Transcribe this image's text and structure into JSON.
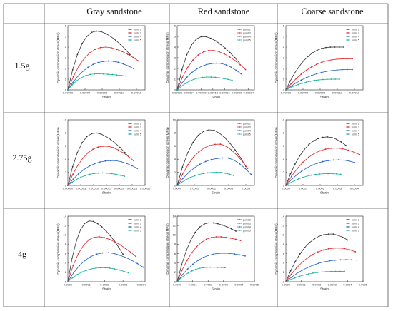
{
  "table": {
    "columns": [
      "Gray sandstone",
      "Red sandstone",
      "Coarse sandstone"
    ],
    "rows": [
      "1.5g",
      "2.75g",
      "4g"
    ]
  },
  "colors": {
    "point 2": "#333333",
    "point 3": "#e8252a",
    "point 4": "#1f5fd0",
    "point 5": "#16b28f"
  },
  "chart_data": [
    {
      "type": "line",
      "row": "1.5g",
      "column": "Gray sandstone",
      "xlabel": "Strain",
      "ylabel": "Dynamic compression stress(MPa)",
      "xlim": [
        0,
        0.00018
      ],
      "ylim": [
        0,
        6
      ],
      "xticks": [
        0,
        4e-05,
        8e-05,
        0.00012,
        0.00016
      ],
      "xticklabels": [
        "0.00000",
        "0.00004",
        "0.00008",
        "0.00012",
        "0.00016"
      ],
      "yticks": [
        0,
        1,
        2,
        3,
        4,
        5,
        6
      ],
      "series": [
        {
          "name": "point 2",
          "peak": [
            7e-05,
            5.5
          ],
          "end": [
            0.000145,
            3.3
          ]
        },
        {
          "name": "point 3",
          "peak": [
            9e-05,
            4.0
          ],
          "end": [
            0.000165,
            2.7
          ]
        },
        {
          "name": "point 4",
          "peak": [
            0.0001,
            2.7
          ],
          "end": [
            0.000153,
            2.0
          ]
        },
        {
          "name": "point 5",
          "peak": [
            7e-05,
            1.5
          ],
          "end": [
            0.000135,
            1.3
          ]
        }
      ]
    },
    {
      "type": "line",
      "row": "1.5g",
      "column": "Red sandstone",
      "xlabel": "Strain",
      "ylabel": "Dynamic compression stress(MPa)",
      "xlim": [
        0,
        0.00026
      ],
      "ylim": [
        0,
        6
      ],
      "xticks": [
        0,
        4e-05,
        8e-05,
        0.00012,
        0.00016,
        0.0002,
        0.00024
      ],
      "xticklabels": [
        "0.00000",
        "0.00004",
        "0.00008",
        "0.00012",
        "0.00016",
        "0.00020",
        "0.00024"
      ],
      "yticks": [
        0,
        1,
        2,
        3,
        4,
        5,
        6
      ],
      "series": [
        {
          "name": "point 2",
          "peak": [
            9e-05,
            5.0
          ],
          "end": [
            0.00021,
            2.5
          ]
        },
        {
          "name": "point 3",
          "peak": [
            0.00012,
            3.7
          ],
          "end": [
            0.00023,
            1.9
          ]
        },
        {
          "name": "point 4",
          "peak": [
            0.00014,
            2.5
          ],
          "end": [
            0.000215,
            1.5
          ]
        },
        {
          "name": "point 5",
          "peak": [
            0.00011,
            1.2
          ],
          "end": [
            0.000185,
            0.9
          ]
        }
      ]
    },
    {
      "type": "line",
      "row": "1.5g",
      "column": "Coarse sandstone",
      "xlabel": "Strain",
      "ylabel": "Dynamic compression stress(MPa)",
      "xlim": [
        0,
        0.00018
      ],
      "ylim": [
        0,
        6
      ],
      "xticks": [
        0,
        4e-05,
        8e-05,
        0.00012,
        0.00016
      ],
      "xticklabels": [
        "0.00000",
        "0.00004",
        "0.00008",
        "0.00012",
        "0.00016"
      ],
      "yticks": [
        0,
        1,
        2,
        3,
        4,
        5,
        6
      ],
      "series": [
        {
          "name": "point 2",
          "peak": [
            0.00011,
            4.0
          ],
          "end": [
            0.000135,
            4.0
          ]
        },
        {
          "name": "point 3",
          "peak": [
            0.00014,
            2.9
          ],
          "end": [
            0.000155,
            2.9
          ]
        },
        {
          "name": "point 4",
          "peak": [
            0.00015,
            1.9
          ],
          "end": [
            0.000155,
            1.9
          ]
        },
        {
          "name": "point 5",
          "peak": [
            0.000115,
            1.0
          ],
          "end": [
            0.000125,
            1.0
          ]
        }
      ]
    },
    {
      "type": "line",
      "row": "2.75g",
      "column": "Gray sandstone",
      "xlabel": "Strain",
      "ylabel": "Dynamic compression stress(MPa)",
      "xlim": [
        0,
        0.0003
      ],
      "ylim": [
        0,
        10
      ],
      "xticks": [
        0,
        5e-05,
        0.0001,
        0.00015,
        0.0002,
        0.00025,
        0.0003
      ],
      "xticklabels": [
        "0.00000",
        "0.00005",
        "0.00010",
        "0.00015",
        "0.00020",
        "0.00025",
        "0.00030"
      ],
      "yticks": [
        0,
        2,
        4,
        6,
        8,
        10
      ],
      "series": [
        {
          "name": "point 2",
          "peak": [
            0.00011,
            8.0
          ],
          "end": [
            0.00024,
            4.2
          ]
        },
        {
          "name": "point 3",
          "peak": [
            0.00015,
            6.0
          ],
          "end": [
            0.000255,
            3.8
          ]
        },
        {
          "name": "point 4",
          "peak": [
            0.00018,
            3.8
          ],
          "end": [
            0.00027,
            2.6
          ]
        },
        {
          "name": "point 5",
          "peak": [
            0.00014,
            1.9
          ],
          "end": [
            0.00022,
            1.4
          ]
        }
      ]
    },
    {
      "type": "line",
      "row": "2.75g",
      "column": "Red sandstone",
      "xlabel": "Strain",
      "ylabel": "Dynamic compression stress(MPa)",
      "xlim": [
        0,
        0.00045
      ],
      "ylim": [
        0,
        10
      ],
      "xticks": [
        0,
        0.0001,
        0.0002,
        0.0003,
        0.0004
      ],
      "xticklabels": [
        "0.0000",
        "0.0001",
        "0.0002",
        "0.0003",
        "0.0004"
      ],
      "yticks": [
        0,
        2,
        4,
        6,
        8,
        10
      ],
      "series": [
        {
          "name": "point 2",
          "peak": [
            0.0002,
            8.5
          ],
          "end": [
            0.0004,
            2.9
          ]
        },
        {
          "name": "point 3",
          "peak": [
            0.00025,
            6.3
          ],
          "end": [
            0.00041,
            2.6
          ]
        },
        {
          "name": "point 4",
          "peak": [
            0.00029,
            4.2
          ],
          "end": [
            0.00043,
            1.7
          ]
        },
        {
          "name": "point 5",
          "peak": [
            0.00024,
            2.0
          ],
          "end": [
            0.00033,
            1.5
          ]
        }
      ]
    },
    {
      "type": "line",
      "row": "2.75g",
      "column": "Coarse sandstone",
      "xlabel": "Strain",
      "ylabel": "Dynamic compression stress(MPa)",
      "xlim": [
        0,
        0.00045
      ],
      "ylim": [
        0,
        10
      ],
      "xticks": [
        0,
        0.0001,
        0.0002,
        0.0003,
        0.0004
      ],
      "xticklabels": [
        "0.0000",
        "0.0001",
        "0.0002",
        "0.0003",
        "0.0004"
      ],
      "yticks": [
        0,
        2,
        4,
        6,
        8,
        10
      ],
      "series": [
        {
          "name": "point 2",
          "peak": [
            0.00025,
            7.4
          ],
          "end": [
            0.00035,
            6.1
          ]
        },
        {
          "name": "point 3",
          "peak": [
            0.0003,
            5.7
          ],
          "end": [
            0.00043,
            4.7
          ]
        },
        {
          "name": "point 4",
          "peak": [
            0.00032,
            3.9
          ],
          "end": [
            0.0004,
            3.5
          ]
        },
        {
          "name": "point 5",
          "peak": [
            0.00026,
            1.8
          ],
          "end": [
            0.00032,
            1.7
          ]
        }
      ]
    },
    {
      "type": "line",
      "row": "4g",
      "column": "Gray sandstone",
      "xlabel": "Strain",
      "ylabel": "Dynamic compression stress(MPa)",
      "xlim": [
        0,
        0.00042
      ],
      "ylim": [
        0,
        14
      ],
      "xticks": [
        0,
        0.0001,
        0.0002,
        0.0003,
        0.0004
      ],
      "xticklabels": [
        "0.0000",
        "0.0001",
        "0.0002",
        "0.0003",
        "0.0004"
      ],
      "yticks": [
        0,
        2,
        4,
        6,
        8,
        10,
        12,
        14
      ],
      "series": [
        {
          "name": "point 2",
          "peak": [
            0.000125,
            13.0
          ],
          "end": [
            0.0003,
            5.9
          ]
        },
        {
          "name": "point 3",
          "peak": [
            0.00017,
            9.6
          ],
          "end": [
            0.00037,
            5.4
          ]
        },
        {
          "name": "point 4",
          "peak": [
            0.00022,
            6.2
          ],
          "end": [
            0.00041,
            3.1
          ]
        },
        {
          "name": "point 5",
          "peak": [
            0.0002,
            3.0
          ],
          "end": [
            0.00033,
            1.9
          ]
        }
      ]
    },
    {
      "type": "line",
      "row": "4g",
      "column": "Red sandstone",
      "xlabel": "Strain",
      "ylabel": "Dynamic compression stress(MPa)",
      "xlim": [
        0,
        0.0005
      ],
      "ylim": [
        0,
        14
      ],
      "xticks": [
        0,
        0.0001,
        0.0002,
        0.0003,
        0.0004,
        0.0005
      ],
      "xticklabels": [
        "0.0000",
        "0.0001",
        "0.0002",
        "0.0003",
        "0.0004",
        "0.0005"
      ],
      "yticks": [
        0,
        2,
        4,
        6,
        8,
        10,
        12,
        14
      ],
      "series": [
        {
          "name": "point 2",
          "peak": [
            0.00022,
            12.6
          ],
          "end": [
            0.00038,
            10.8
          ]
        },
        {
          "name": "point 3",
          "peak": [
            0.00027,
            9.6
          ],
          "end": [
            0.00041,
            8.8
          ]
        },
        {
          "name": "point 4",
          "peak": [
            0.00031,
            6.1
          ],
          "end": [
            0.00044,
            5.5
          ]
        },
        {
          "name": "point 5",
          "peak": [
            0.00022,
            3.1
          ],
          "end": [
            0.00031,
            3.0
          ]
        }
      ]
    },
    {
      "type": "line",
      "row": "4g",
      "column": "Coarse sandstone",
      "xlabel": "Strain",
      "ylabel": "Dynamic compression stress(MPa)",
      "xlim": [
        0,
        0.0005
      ],
      "ylim": [
        0,
        14
      ],
      "xticks": [
        0,
        0.0001,
        0.0002,
        0.0003,
        0.0004,
        0.0005
      ],
      "xticklabels": [
        "0.0000",
        "0.0001",
        "0.0002",
        "0.0003",
        "0.0004",
        "0.0005"
      ],
      "yticks": [
        0,
        2,
        4,
        6,
        8,
        10,
        12,
        14
      ],
      "series": [
        {
          "name": "point 2",
          "peak": [
            0.0003,
            10.2
          ],
          "end": [
            0.0004,
            8.9
          ]
        },
        {
          "name": "point 3",
          "peak": [
            0.00035,
            7.2
          ],
          "end": [
            0.00045,
            6.4
          ]
        },
        {
          "name": "point 4",
          "peak": [
            0.0004,
            4.7
          ],
          "end": [
            0.00046,
            4.6
          ]
        },
        {
          "name": "point 5",
          "peak": [
            0.00033,
            2.2
          ],
          "end": [
            0.00038,
            2.2
          ]
        }
      ]
    }
  ]
}
